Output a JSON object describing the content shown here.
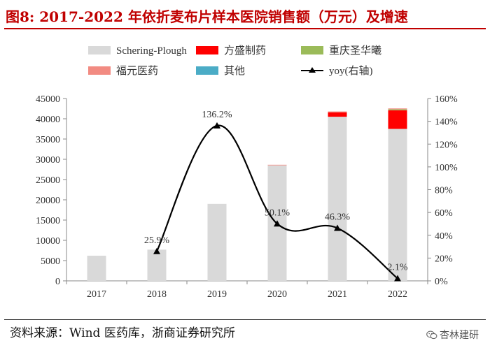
{
  "title": "图8:   2017-2022 年依折麦布片样本医院销售额（万元）及增速",
  "source": "资料来源：Wind 医药库，浙商证券研究所",
  "watermark": "杏林建研",
  "colors": {
    "title": "#c00000",
    "Schering-Plough": "#d9d9d9",
    "方盛制药": "#ff0000",
    "重庆圣华曦": "#9bbb59",
    "福元医药": "#f28b82",
    "其他": "#4bacc6",
    "yoy": "#000000"
  },
  "chart_data": {
    "type": "bar",
    "stacked": true,
    "categories": [
      "2017",
      "2018",
      "2019",
      "2020",
      "2021",
      "2022"
    ],
    "series": [
      {
        "name": "Schering-Plough",
        "values": [
          6200,
          7700,
          19000,
          28500,
          40500,
          37500
        ]
      },
      {
        "name": "方盛制药",
        "values": [
          0,
          0,
          0,
          0,
          1100,
          4600
        ]
      },
      {
        "name": "重庆圣华曦",
        "values": [
          0,
          0,
          0,
          0,
          0,
          250
        ]
      },
      {
        "name": "福元医药",
        "values": [
          0,
          0,
          0,
          150,
          200,
          200
        ]
      },
      {
        "name": "其他",
        "values": [
          0,
          0,
          0,
          0,
          0,
          0
        ]
      }
    ],
    "line": {
      "name": "yoy(右轴)",
      "categories": [
        "2018",
        "2019",
        "2020",
        "2021",
        "2022"
      ],
      "values": [
        25.9,
        136.2,
        50.1,
        46.3,
        2.1
      ],
      "labels": [
        "25.9%",
        "136.2%",
        "50.1%",
        "46.3%",
        "2.1%"
      ]
    },
    "y_left": {
      "min": 0,
      "max": 45000,
      "ticks": [
        "0",
        "5000",
        "10000",
        "15000",
        "20000",
        "25000",
        "30000",
        "35000",
        "40000",
        "45000"
      ]
    },
    "y_right": {
      "min": 0,
      "max": 160,
      "ticks": [
        "0%",
        "20%",
        "40%",
        "60%",
        "80%",
        "100%",
        "120%",
        "140%",
        "160%"
      ]
    },
    "legend": [
      "Schering-Plough",
      "方盛制药",
      "重庆圣华曦",
      "福元医药",
      "其他",
      "yoy(右轴)"
    ],
    "legend_position": "top",
    "grid": false
  }
}
